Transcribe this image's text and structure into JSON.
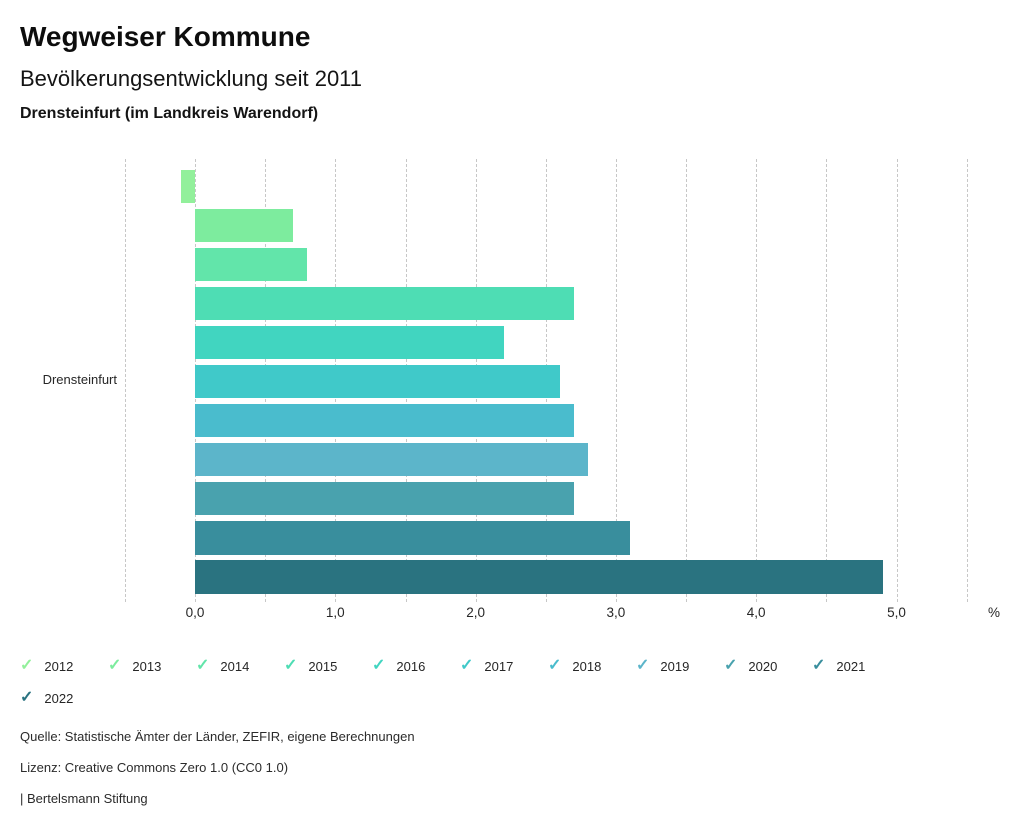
{
  "header": {
    "title": "Wegweiser Kommune",
    "subtitle": "Bevölkerungsentwicklung seit 2011",
    "region": "Drensteinfurt (im Landkreis Warendorf)"
  },
  "chart_data": {
    "type": "bar",
    "orientation": "horizontal",
    "title": "Bevölkerungsentwicklung seit 2011",
    "category_label": "Drensteinfurt",
    "unit_label": "%",
    "xlim": [
      -0.5,
      5.5
    ],
    "grid_step": 0.5,
    "grid": "dashed",
    "tick_values": [
      0,
      1,
      2,
      3,
      4,
      5
    ],
    "tick_labels": [
      "0,0",
      "1,0",
      "2,0",
      "3,0",
      "4,0",
      "5,0"
    ],
    "legend_position": "bottom",
    "legend_marker": "✓",
    "series": [
      {
        "name": "2012",
        "value": -0.1,
        "color": "#92f09b"
      },
      {
        "name": "2013",
        "value": 0.7,
        "color": "#7dec9e"
      },
      {
        "name": "2014",
        "value": 0.8,
        "color": "#62e5aa"
      },
      {
        "name": "2015",
        "value": 2.7,
        "color": "#4eddb4"
      },
      {
        "name": "2016",
        "value": 2.2,
        "color": "#41d5c0"
      },
      {
        "name": "2017",
        "value": 2.6,
        "color": "#40c9c9"
      },
      {
        "name": "2018",
        "value": 2.7,
        "color": "#4abccd"
      },
      {
        "name": "2019",
        "value": 2.8,
        "color": "#5cb5ca"
      },
      {
        "name": "2020",
        "value": 2.7,
        "color": "#49a2ae"
      },
      {
        "name": "2021",
        "value": 3.1,
        "color": "#398e9d"
      },
      {
        "name": "2022",
        "value": 4.9,
        "color": "#2a7380"
      }
    ]
  },
  "footer": {
    "source": "Quelle: Statistische Ämter der Länder, ZEFIR, eigene Berechnungen",
    "license": "Lizenz: Creative Commons Zero 1.0 (CC0 1.0)",
    "attribution": "| Bertelsmann Stiftung"
  }
}
